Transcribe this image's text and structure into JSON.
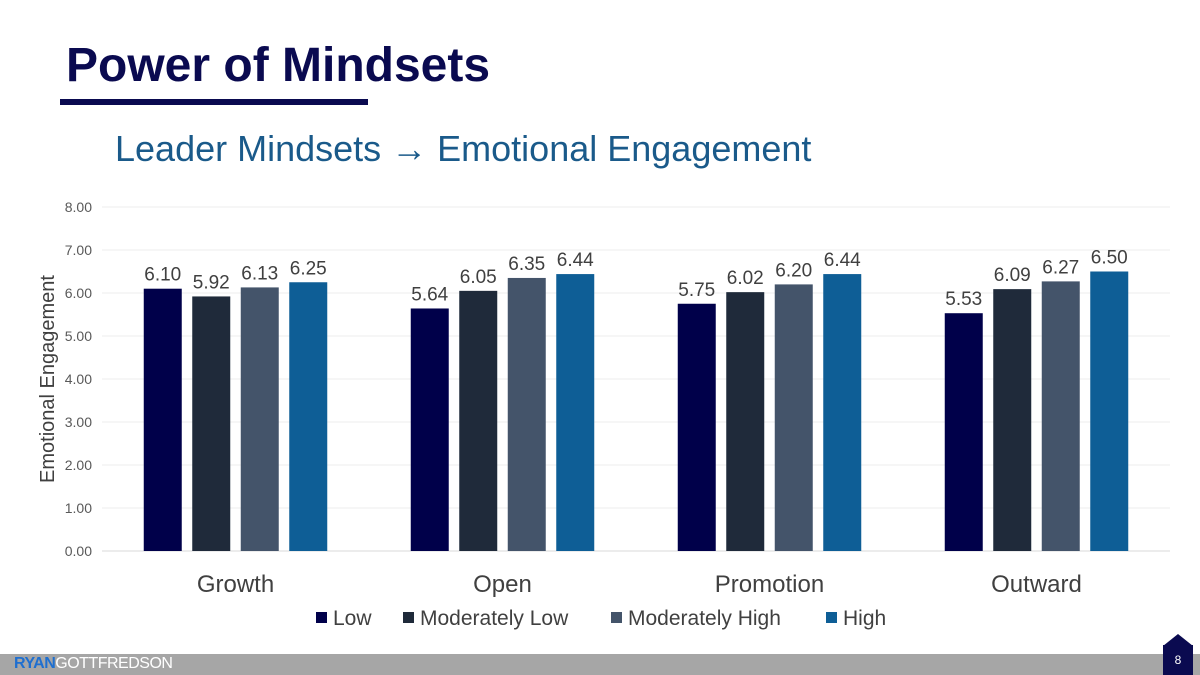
{
  "slide": {
    "title": "Power of Mindsets",
    "subtitle": "Leader Mindsets → Emotional Engagement",
    "brand_part1": "RYAN",
    "brand_part2": "GOTTFREDSON",
    "page_number": "8"
  },
  "chart_data": {
    "type": "bar",
    "categories": [
      "Growth",
      "Open",
      "Promotion",
      "Outward"
    ],
    "series": [
      {
        "name": "Low",
        "color": "#00004a",
        "values": [
          6.1,
          5.64,
          5.75,
          5.53
        ]
      },
      {
        "name": "Moderately Low",
        "color": "#1f2a3a",
        "values": [
          5.92,
          6.05,
          6.02,
          6.09
        ]
      },
      {
        "name": "Moderately High",
        "color": "#44546a",
        "values": [
          6.13,
          6.35,
          6.2,
          6.27
        ]
      },
      {
        "name": "High",
        "color": "#0e5e96",
        "values": [
          6.25,
          6.44,
          6.44,
          6.5
        ]
      }
    ],
    "ylabel": "Emotional Engagement",
    "xlabel": "",
    "ylim": [
      0,
      8
    ],
    "yticks": [
      "0.00",
      "1.00",
      "2.00",
      "3.00",
      "4.00",
      "5.00",
      "6.00",
      "7.00",
      "8.00"
    ],
    "grid": true,
    "legend": "bottom"
  }
}
